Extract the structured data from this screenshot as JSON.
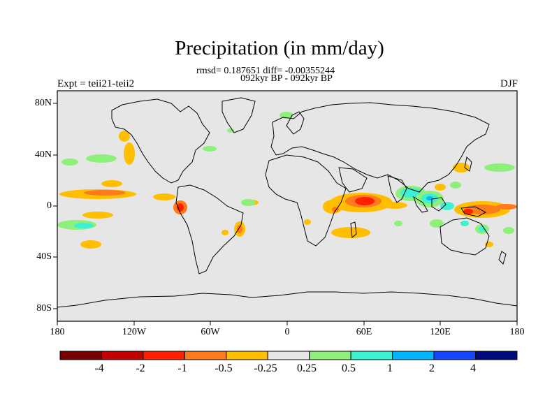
{
  "title": "Precipitation (in mm/day)",
  "stats": "rmsd= 0.187651 diff= -0.00355244",
  "period": "092kyr BP - 092kyr BP",
  "experiment": "Expt = teii21-teii2",
  "season": "DJF",
  "y_ticks": [
    "80N",
    "40N",
    "0",
    "40S",
    "80S"
  ],
  "x_ticks": [
    "180",
    "120W",
    "60W",
    "0",
    "60E",
    "120E",
    "180"
  ],
  "legend": {
    "colors": [
      "#7a0000",
      "#c40000",
      "#ff2000",
      "#ff7a1a",
      "#ffbf00",
      "#e6e6e6",
      "#8ef07a",
      "#3cf0d2",
      "#00b4ff",
      "#1446ff",
      "#000a80"
    ],
    "labels": [
      "-4",
      "-2",
      "-1",
      "-0.5",
      "-0.25",
      "0.25",
      "0.5",
      "1",
      "2",
      "4"
    ]
  },
  "colors": {
    "ocean_background": "#e6e6e6",
    "coastline": "#000000"
  }
}
